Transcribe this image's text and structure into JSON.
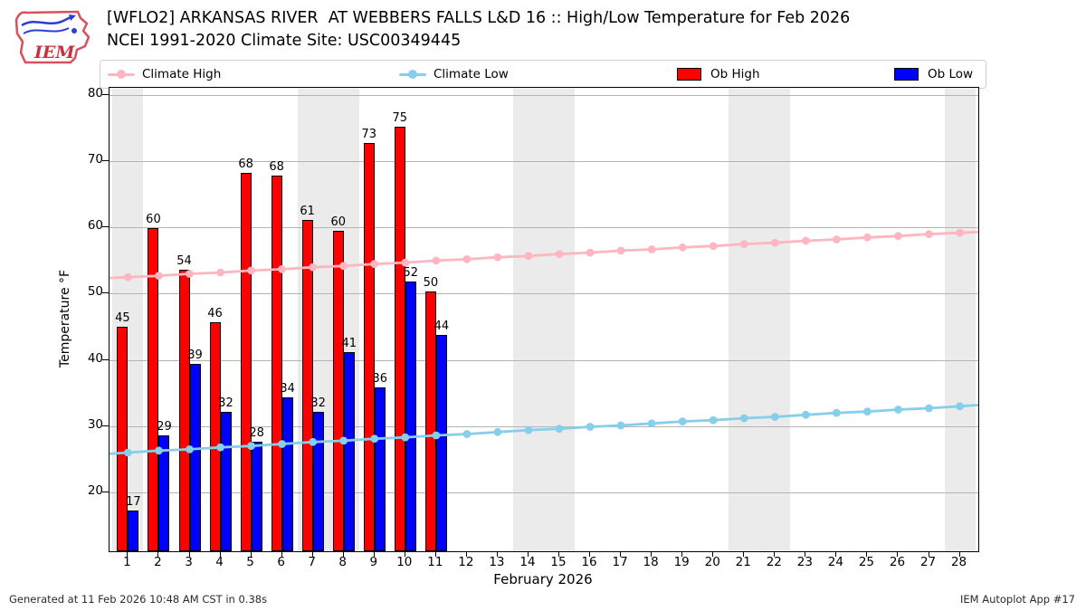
{
  "header": {
    "title": "[WFLO2] ARKANSAS RIVER  AT WEBBERS FALLS L&D 16 :: High/Low Temperature for Feb 2026",
    "subtitle": "NCEI 1991-2020 Climate Site: USC00349445",
    "logo_text": "IEM"
  },
  "legend": [
    {
      "label": "Climate High",
      "type": "line",
      "color": "#ffb6c1"
    },
    {
      "label": "Climate Low",
      "type": "line",
      "color": "#87ceeb"
    },
    {
      "label": "Ob High",
      "type": "patch",
      "color": "#ff0000"
    },
    {
      "label": "Ob Low",
      "type": "patch",
      "color": "#0000ff"
    }
  ],
  "chart_data": {
    "type": "bar",
    "title": "[WFLO2] ARKANSAS RIVER  AT WEBBERS FALLS L&D 16 :: High/Low Temperature for Feb 2026",
    "subtitle": "NCEI 1991-2020 Climate Site: USC00349445",
    "xlabel": "February 2026",
    "ylabel": "Temperature °F",
    "xticks": [
      1,
      2,
      3,
      4,
      5,
      6,
      7,
      8,
      9,
      10,
      11,
      12,
      13,
      14,
      15,
      16,
      17,
      18,
      19,
      20,
      21,
      22,
      23,
      24,
      25,
      26,
      27,
      28
    ],
    "yticks": [
      20,
      30,
      40,
      50,
      60,
      70,
      80
    ],
    "xlim": [
      0.4,
      28.6
    ],
    "ylim": [
      11.1,
      81.1
    ],
    "grid": true,
    "legend_position": "top",
    "weekend_shading_days": [
      1,
      7,
      8,
      14,
      15,
      21,
      22,
      28
    ],
    "days": [
      1,
      2,
      3,
      4,
      5,
      6,
      7,
      8,
      9,
      10,
      11,
      12,
      13,
      14,
      15,
      16,
      17,
      18,
      19,
      20,
      21,
      22,
      23,
      24,
      25,
      26,
      27,
      28
    ],
    "series": [
      {
        "name": "Climate High",
        "type": "line",
        "color": "#ffb6c1",
        "marker": "circle",
        "values": [
          52.5,
          52.7,
          53.0,
          53.2,
          53.5,
          53.7,
          54.0,
          54.2,
          54.5,
          54.7,
          55.0,
          55.2,
          55.5,
          55.7,
          56.0,
          56.2,
          56.5,
          56.7,
          57.0,
          57.2,
          57.5,
          57.7,
          58.0,
          58.2,
          58.5,
          58.7,
          59.0,
          59.2
        ]
      },
      {
        "name": "Climate Low",
        "type": "line",
        "color": "#87ceeb",
        "marker": "circle",
        "values": [
          26.0,
          26.3,
          26.5,
          26.8,
          27.0,
          27.3,
          27.6,
          27.8,
          28.1,
          28.3,
          28.6,
          28.8,
          29.1,
          29.4,
          29.6,
          29.9,
          30.1,
          30.4,
          30.7,
          30.9,
          31.2,
          31.4,
          31.7,
          32.0,
          32.2,
          32.5,
          32.7,
          33.0
        ]
      },
      {
        "name": "Ob High",
        "type": "bar",
        "color": "#ff0000",
        "days": [
          1,
          2,
          3,
          4,
          5,
          6,
          7,
          8,
          9,
          10,
          11
        ],
        "values": [
          45.0,
          59.9,
          53.6,
          45.7,
          68.2,
          67.9,
          61.2,
          59.5,
          72.7,
          75.2,
          50.3
        ],
        "labels": [
          "45",
          "60",
          "54",
          "46",
          "68",
          "68",
          "61",
          "60",
          "73",
          "75",
          "50"
        ]
      },
      {
        "name": "Ob Low",
        "type": "bar",
        "color": "#0000ff",
        "days": [
          1,
          2,
          3,
          4,
          5,
          6,
          7,
          8,
          9,
          10,
          11
        ],
        "values": [
          17.2,
          28.6,
          39.4,
          32.2,
          27.6,
          34.3,
          32.2,
          41.2,
          35.8,
          51.8,
          43.8
        ],
        "labels": [
          "17",
          "29",
          "39",
          "32",
          "28",
          "34",
          "32",
          "41",
          "36",
          "52",
          "44"
        ]
      }
    ]
  },
  "footer": {
    "left": "Generated at 11 Feb 2026 10:48 AM CST in 0.38s",
    "right": "IEM Autoplot App #17"
  }
}
